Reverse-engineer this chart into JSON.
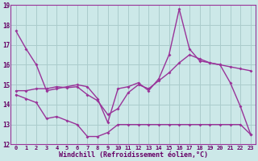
{
  "xlabel": "Windchill (Refroidissement éolien,°C)",
  "background_color": "#cce8e8",
  "grid_color": "#aacccc",
  "line_color": "#993399",
  "x_hours": [
    0,
    1,
    2,
    3,
    4,
    5,
    6,
    7,
    8,
    9,
    10,
    11,
    12,
    13,
    14,
    15,
    16,
    17,
    18,
    19,
    20,
    21,
    22,
    23
  ],
  "series_top": [
    17.7,
    16.8,
    16.0,
    14.7,
    14.8,
    14.9,
    15.0,
    14.9,
    14.3,
    13.1,
    14.8,
    14.9,
    15.1,
    14.7,
    15.3,
    16.5,
    18.8,
    16.8,
    16.2,
    16.1,
    16.0,
    15.1,
    13.9,
    12.5
  ],
  "series_mid": [
    14.7,
    14.7,
    14.8,
    14.8,
    14.9,
    14.85,
    14.9,
    14.5,
    14.2,
    13.5,
    13.8,
    14.6,
    15.0,
    14.8,
    15.2,
    15.6,
    16.1,
    16.5,
    16.3,
    16.1,
    16.0,
    15.9,
    15.8,
    15.7
  ],
  "series_bot": [
    14.5,
    14.3,
    14.1,
    13.3,
    13.4,
    13.2,
    13.0,
    12.4,
    12.4,
    12.6,
    13.0,
    13.0,
    13.0,
    13.0,
    13.0,
    13.0,
    13.0,
    13.0,
    13.0,
    13.0,
    13.0,
    13.0,
    13.0,
    12.5
  ],
  "ylim": [
    12,
    19
  ],
  "xlim_min": -0.5,
  "xlim_max": 23.5,
  "yticks": [
    12,
    13,
    14,
    15,
    16,
    17,
    18,
    19
  ],
  "xticks": [
    0,
    1,
    2,
    3,
    4,
    5,
    6,
    7,
    8,
    9,
    10,
    11,
    12,
    13,
    14,
    15,
    16,
    17,
    18,
    19,
    20,
    21,
    22,
    23
  ]
}
